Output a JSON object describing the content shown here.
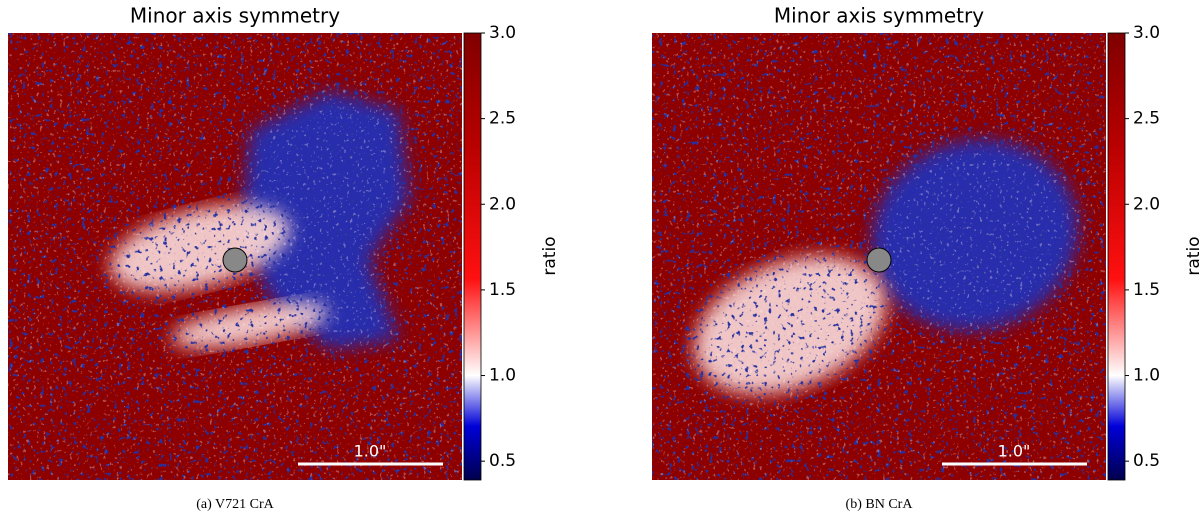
{
  "chart_data": [
    {
      "type": "heatmap",
      "title": "Minor axis symmetry",
      "caption": "(a) V721 CrA",
      "colorbar_label": "ratio",
      "scalebar_label": "1.0\"",
      "clim": [
        0.39,
        3.0
      ],
      "cticks": [
        0.5,
        {
          "value": 1,
          "label": "1.0"
        },
        1.5,
        {
          "value": 2,
          "label": "2.0"
        },
        2.5,
        {
          "value": 3,
          "label": "3.0"
        }
      ]
    },
    {
      "type": "heatmap",
      "title": "Minor axis symmetry",
      "caption": "(b) BN CrA",
      "colorbar_label": "ratio",
      "scalebar_label": "1.0\"",
      "clim": [
        0.39,
        3.0
      ],
      "cticks": [
        0.5,
        {
          "value": 1,
          "label": "1.0"
        },
        1.5,
        {
          "value": 2,
          "label": "2.0"
        },
        2.5,
        {
          "value": 3,
          "label": "3.0"
        }
      ]
    }
  ]
}
